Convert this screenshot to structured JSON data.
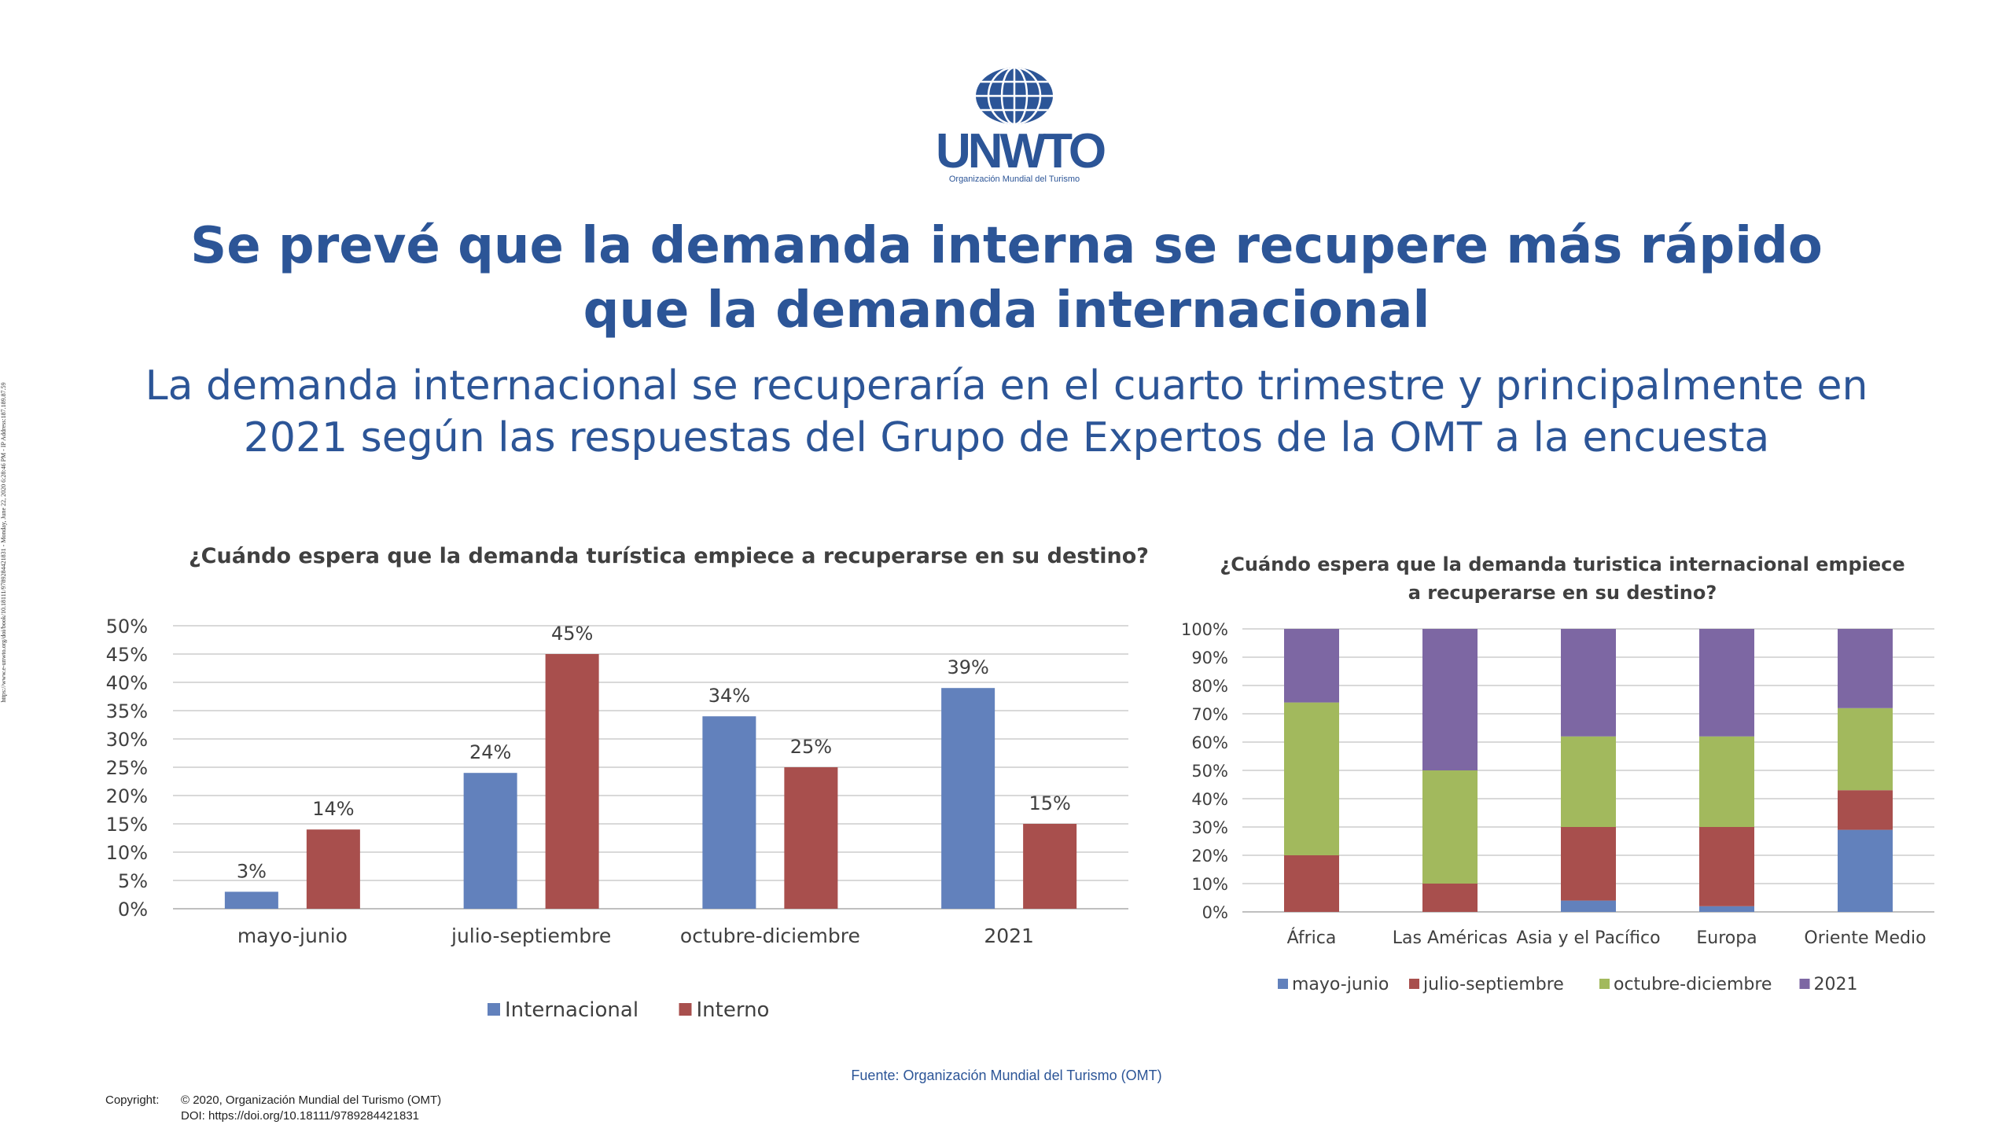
{
  "logo": {
    "word": "UNWTO",
    "subtitle": "Organización Mundial del Turismo"
  },
  "title": "Se prevé que la demanda interna se recupere más rápido que la demanda internacional",
  "subtitle": "La demanda internacional se recuperaría en el cuarto trimestre y principalmente en 2021 según las respuestas del Grupo de Expertos de la OMT a la encuesta",
  "side_text": "https://www.e-unwto.org/doi/book/10.18111/9789284421831 - Monday, June 22, 2020 6:28:46 PM - IP Address:187.189.87.59",
  "source": "Fuente: Organización Mundial del Turismo (OMT)",
  "copyright": {
    "label": "Copyright:",
    "line1": "© 2020, Organización Mundial del Turismo (OMT)",
    "line2": "DOI: https://doi.org/10.18111/9789284421831"
  },
  "colors": {
    "blue": "#6281bc",
    "red": "#a84f4d",
    "green": "#a2b95d",
    "purple": "#7d67a3",
    "title": "#2c5597"
  },
  "chart_data": [
    {
      "type": "bar",
      "title": "¿Cuándo espera que la demanda turística empiece a recuperarse en su destino?",
      "categories": [
        "mayo-junio",
        "julio-septiembre",
        "octubre-diciembre",
        "2021"
      ],
      "series": [
        {
          "name": "Internacional",
          "values": [
            3,
            24,
            34,
            39
          ],
          "labels": [
            "3%",
            "24%",
            "34%",
            "39%"
          ],
          "color": "#6281bc"
        },
        {
          "name": "Interno",
          "values": [
            14,
            45,
            25,
            15
          ],
          "labels": [
            "14%",
            "45%",
            "25%",
            "15%"
          ],
          "color": "#a84f4d"
        }
      ],
      "ylim": [
        0,
        50
      ],
      "yticks": [
        "0%",
        "5%",
        "10%",
        "15%",
        "20%",
        "25%",
        "30%",
        "35%",
        "40%",
        "45%",
        "50%"
      ],
      "grid": true,
      "legend": "bottom"
    },
    {
      "type": "bar",
      "stacked": true,
      "title_lines": [
        "¿Cuándo espera que la demanda turistica internacional empiece",
        "a recuperarse en su destino?"
      ],
      "categories": [
        "África",
        "Las Américas",
        "Asia y el Pacífico",
        "Europa",
        "Oriente Medio"
      ],
      "series": [
        {
          "name": "mayo-junio",
          "values": [
            0,
            0,
            4,
            2,
            29
          ],
          "color": "#6281bc"
        },
        {
          "name": "julio-septiembre",
          "values": [
            20,
            10,
            26,
            28,
            14
          ],
          "color": "#a84f4d"
        },
        {
          "name": "octubre-diciembre",
          "values": [
            54,
            40,
            32,
            32,
            29
          ],
          "color": "#a2b95d"
        },
        {
          "name": "2021",
          "values": [
            26,
            50,
            38,
            38,
            28
          ],
          "color": "#7d67a3"
        }
      ],
      "ylim": [
        0,
        100
      ],
      "yticks": [
        "0%",
        "10%",
        "20%",
        "30%",
        "40%",
        "50%",
        "60%",
        "70%",
        "80%",
        "90%",
        "100%"
      ],
      "grid": true,
      "legend": "bottom"
    }
  ]
}
